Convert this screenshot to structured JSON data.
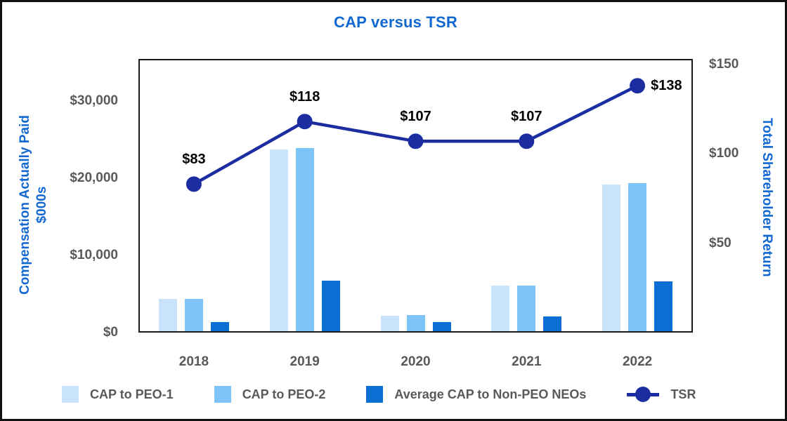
{
  "title": "CAP versus TSR",
  "colors": {
    "title_blue": "#1268D1",
    "axis_label_blue": "#1268D1",
    "tick_gray": "#595959",
    "point_label_black": "#000000",
    "plot_border": "#1a1a1a",
    "figure_border": "#111111"
  },
  "chart_data": {
    "type": "bar+line",
    "title": "CAP versus TSR",
    "categories": [
      "2018",
      "2019",
      "2020",
      "2021",
      "2022"
    ],
    "series": [
      {
        "name": "CAP to PEO-1",
        "type": "bar",
        "axis": "left",
        "color": "#C9E3FB",
        "values": [
          4400,
          23800,
          2200,
          6100,
          19200
        ]
      },
      {
        "name": "CAP to PEO-2",
        "type": "bar",
        "axis": "left",
        "color": "#7DC4F8",
        "values": [
          4400,
          23900,
          2300,
          6100,
          19400
        ]
      },
      {
        "name": "Average CAP to Non-PEO NEOs",
        "type": "bar",
        "axis": "left",
        "color": "#0C6FD4",
        "values": [
          1400,
          6700,
          1400,
          2100,
          6600
        ]
      },
      {
        "name": "TSR",
        "type": "line",
        "axis": "right",
        "color": "#1B2DA0",
        "values": [
          83,
          118,
          107,
          107,
          138
        ],
        "point_labels": [
          "$83",
          "$118",
          "$107",
          "$107",
          "$138"
        ],
        "point_label_positions": [
          "above",
          "above",
          "above",
          "above",
          "right"
        ]
      }
    ],
    "left_axis": {
      "label_lines": [
        "Compensation Actually Paid",
        "$000s"
      ],
      "ticks": [
        {
          "label": "$0",
          "value": 0
        },
        {
          "label": "$10,000",
          "value": 10000
        },
        {
          "label": "$20,000",
          "value": 20000
        },
        {
          "label": "$30,000",
          "value": 30000
        }
      ],
      "max": 35500
    },
    "right_axis": {
      "label": "Total Shareholder Return",
      "ticks": [
        {
          "label": "$50",
          "value": 50
        },
        {
          "label": "$100",
          "value": 100
        },
        {
          "label": "$150",
          "value": 150
        }
      ],
      "max": 153
    },
    "legend_position": "bottom",
    "grid": false
  }
}
